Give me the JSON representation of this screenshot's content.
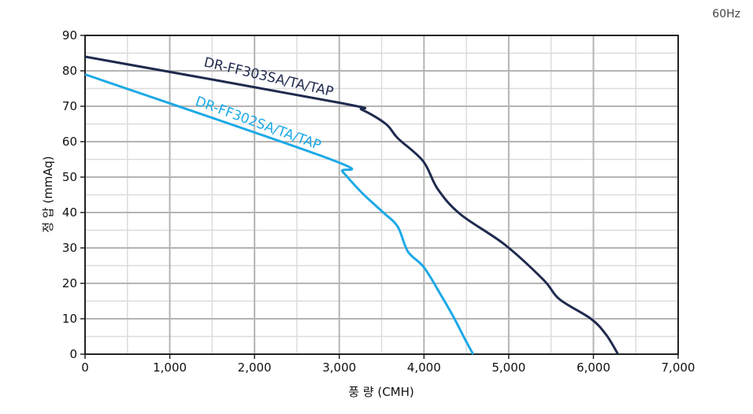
{
  "frequency_label": "60Hz",
  "chart_data": {
    "type": "line",
    "title": "",
    "xlabel": "풍 량 (CMH)",
    "ylabel": "정 압 (mmAq)",
    "xlim": [
      0,
      7000
    ],
    "ylim": [
      0,
      90
    ],
    "x_ticks": [
      "0",
      "1,000",
      "2,000",
      "3,000",
      "4,000",
      "5,000",
      "6,000",
      "7,000"
    ],
    "y_ticks": [
      "0",
      "10",
      "20",
      "30",
      "40",
      "50",
      "60",
      "70",
      "80",
      "90"
    ],
    "grid": true,
    "series": [
      {
        "name": "DR-FF303SA/TA/TAP",
        "color": "#1f2a4e",
        "x": [
          0,
          3000,
          3270,
          3550,
          3690,
          3990,
          4160,
          4430,
          4950,
          5410,
          5600,
          5970,
          6150,
          6290
        ],
        "y": [
          84,
          71,
          69,
          65,
          61,
          54.5,
          46.7,
          39.5,
          31,
          21,
          15.5,
          10,
          5.5,
          0
        ]
      },
      {
        "name": "DR-FF302SA/TA/TAP",
        "color": "#1ca9e6",
        "x": [
          0,
          2900,
          3040,
          3270,
          3520,
          3690,
          3810,
          4000,
          4200,
          4360,
          4480,
          4580
        ],
        "y": [
          79,
          55,
          51.5,
          45.5,
          40,
          36,
          29,
          24.5,
          16.7,
          10,
          4.4,
          0
        ]
      }
    ]
  }
}
